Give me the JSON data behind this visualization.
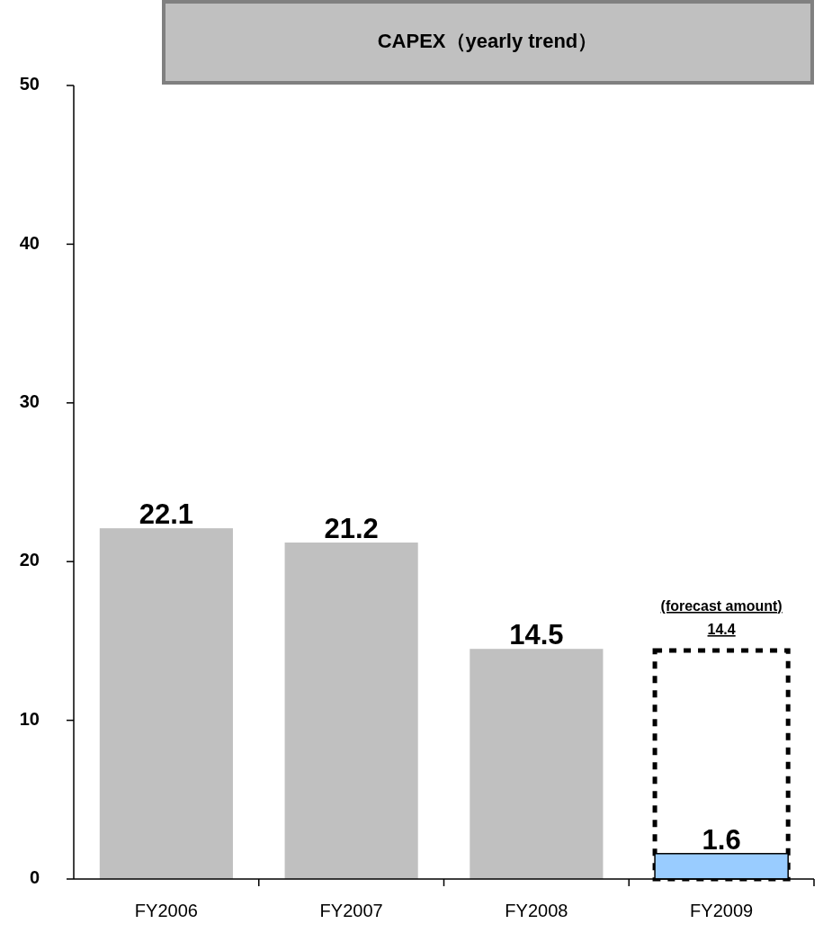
{
  "chart_data": {
    "type": "bar",
    "title": "CAPEX（yearly trend）",
    "categories": [
      "FY2006",
      "FY2007",
      "FY2008",
      "FY2009"
    ],
    "series": [
      {
        "color": "#c0c0c0",
        "colors": [
          "#c0c0c0",
          "#c0c0c0",
          "#c0c0c0",
          "#99ccff"
        ],
        "values": [
          22.1,
          21.2,
          14.5,
          1.6
        ],
        "value_labels": [
          "22.1",
          "21.2",
          "14.5",
          "1.6"
        ]
      },
      {
        "color": "#ffffff",
        "line_style": "dashed",
        "values": [
          null,
          null,
          null,
          14.4
        ],
        "value_labels": [
          null,
          null,
          null,
          "14.4"
        ]
      }
    ],
    "annotations": [
      "(forecast amount)"
    ],
    "ylim": [
      0,
      50
    ],
    "yticks": [
      0,
      10,
      20,
      30,
      40,
      50
    ],
    "grid": false
  }
}
